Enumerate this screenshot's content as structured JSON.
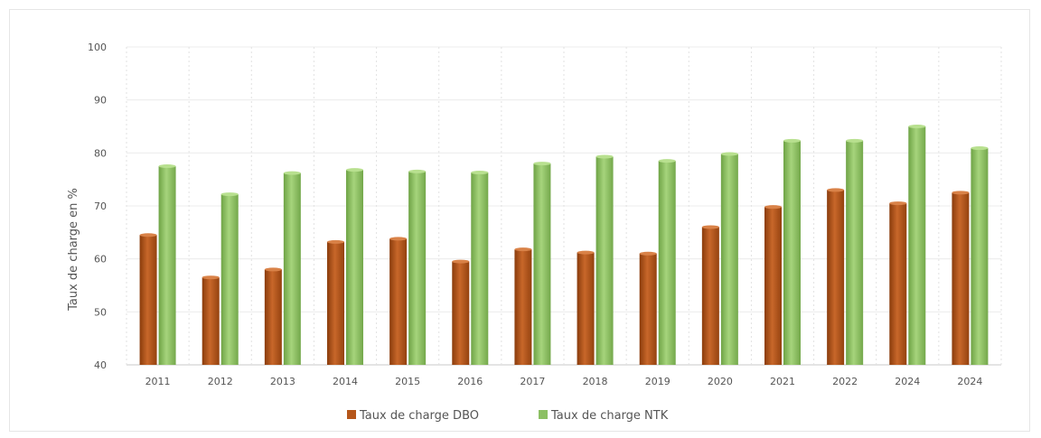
{
  "chart_data": {
    "type": "bar",
    "title": "",
    "xlabel": "",
    "ylabel": "Taux de charge en %",
    "ylim": [
      40,
      100
    ],
    "yticks": [
      40,
      50,
      60,
      70,
      80,
      90,
      100
    ],
    "grid": "vertical dotted and horizontal",
    "legend": "bottom-center",
    "categories": [
      "2011",
      "2012",
      "2013",
      "2014",
      "2015",
      "2016",
      "2017",
      "2018",
      "2019",
      "2020",
      "2021",
      "2022",
      "2024",
      "2024"
    ],
    "series": [
      {
        "name": "Taux de charge DBO",
        "color": "#b5561a",
        "values": [
          64.5,
          56.5,
          58,
          63.2,
          63.8,
          59.5,
          61.8,
          61.2,
          61,
          66,
          69.8,
          73,
          70.5,
          72.5
        ]
      },
      {
        "name": "Taux de charge NTK",
        "color": "#8cc063",
        "values": [
          77.5,
          72.2,
          76.2,
          76.8,
          76.5,
          76.3,
          78,
          79.3,
          78.5,
          79.8,
          82.3,
          82.3,
          85,
          80.9
        ]
      }
    ]
  }
}
